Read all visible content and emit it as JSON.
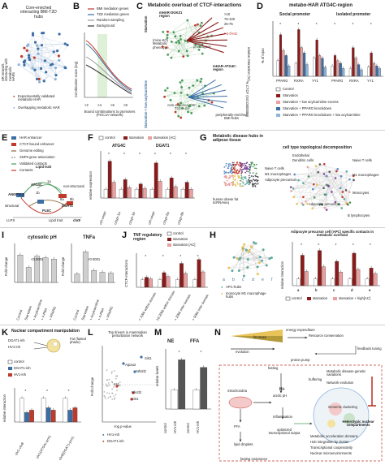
{
  "panels": {
    "A": {
      "letter": "A",
      "title": "Core-enriched interacting BMI-T2D hubs",
      "side_label": "SR network interacting with metabolic HARs",
      "legend": [
        "Experimentally validated metabolic-HAR",
        "Overlapping metabolic HAR"
      ]
    },
    "B": {
      "letter": "B",
      "legend": [
        "BMI mediation genes",
        "T2D mediation genes",
        "Random sampling",
        "Background"
      ],
      "ylabel": "Combination score (log)",
      "xticks": [
        ">2",
        ">4",
        ">6",
        ">8"
      ],
      "xlabel": "Bound combinations to promoters (PGC1A-network)"
    },
    "C": {
      "letter": "C",
      "title": "Metabolic overload of CTCF-interactions",
      "region1": "mHAR-DGKZ1 region",
      "region2": "mHAR-ATG4C-region",
      "starvation": "Starvation",
      "micro": "(mice-KO) Metabolic phenotype",
      "other": "other phenotypes",
      "starv_kd": "Starvation + low acylcarnitine",
      "core": "core-enriched BMI-T2D hubs",
      "peri": "peripherally-enriched BMI-hubs",
      "scale_title": "relative interaction (%)",
      "scale": [
        ">10",
        "75-100",
        "25-75"
      ],
      "ctcf_scale": "% CTCF (GO:0000000)",
      "star": "* 2-tf-KD"
    },
    "D": {
      "letter": "D",
      "title": "metabo-HAR ATG4C-region",
      "social": "Social promoter",
      "isolated": "Isolated promoter",
      "ylabel": "% of input",
      "categories": [
        "PPARG",
        "RXRA",
        "YY1",
        "PPARG",
        "RXRA",
        "YY1"
      ],
      "legend": [
        "Control",
        "Starvation",
        "Starvation + low acylcarnitine excess",
        "Starvation + PPARG knockdown",
        "Starvation + PPARG knockdown + low acylcarnitine"
      ]
    },
    "E": {
      "letter": "E",
      "legend": [
        "HAR enhancer",
        "CTCF-bound enhancer",
        "Genome editing",
        "SNPs-gene association",
        "Validated contacts",
        "Contacts"
      ],
      "labels": {
        "lipid_top": "Lipid trait",
        "angptl3": "ANGPTL3",
        "atg4c": "ATG4C",
        "nonstruct": "non-structural",
        "plec": "PLEC",
        "dgat1": "DGAT1",
        "structural": "structural",
        "llps": "LLPS",
        "lipid_bot": "Lipid trait",
        "chr8": "chr8",
        "n1a": "1a",
        "n1b": "1b",
        "n8a": "8a",
        "n8b": "8b"
      }
    },
    "F": {
      "letter": "F",
      "legend": [
        "control",
        "starvation",
        "starvation [AC]"
      ],
      "ylabel": "relative expression",
      "gene1": "ATG4C",
      "gene2": "DGAT1",
      "xcats1": [
        "ctrl-crispr",
        "crispr-1a",
        "crispr-1b"
      ],
      "xcats2": [
        "ctrl-crispr",
        "crispr-8a",
        "crispr-8b"
      ]
    },
    "G": {
      "letter": "G",
      "title": "Metabolic disease hubs in adipose tissue",
      "subtitle": "cell type topological decomposition",
      "dataset": "human obese fat scRNAseq",
      "cell_labels": [
        "Endothelial",
        "Dendritic cells",
        "Naive T cells",
        "M1 macrophages",
        "Adipocyte precursors",
        "Naive T cells",
        "M1 macrophages",
        "Monocytes",
        "Adipocyte precursors",
        "B lymphocytes"
      ]
    },
    "H": {
      "letter": "H",
      "title": "Adipocyte precursor cell (APC) specific contacts in metabolic overload",
      "ylabel": "relative interaction",
      "xcats": [
        "a",
        "b",
        "c",
        "d",
        "e"
      ],
      "legend": [
        "control",
        "starvation",
        "starvation + high[AC]"
      ],
      "hub_legend": [
        "APC-hubs",
        "monocyte M1 macrophage hubs"
      ],
      "nodes": [
        "a",
        "b",
        "c",
        "d",
        "e",
        "f"
      ]
    },
    "I": {
      "letter": "I",
      "title1": "cytosolic pH",
      "title2": "TNFa",
      "ylabel1": "Fold-change",
      "ylabel2": "Fold-change",
      "pval1": "<0.0001",
      "pval2": "<0.0001",
      "xcats": [
        "Control",
        "Starvation",
        "+ Acylcarnitine",
        "+ 4-PBA",
        "+ PPARG"
      ]
    },
    "J": {
      "letter": "J",
      "title": "TNF regulatory region",
      "ylabel": "CTCF-interactions",
      "legend": [
        "control",
        "starvation",
        "starvation [AC]"
      ],
      "xcats": [
        "< 10kb within domain",
        "10-20kb within domain",
        "> 20kb inter domain",
        "> 50kb inter domain"
      ]
    },
    "K": {
      "letter": "K",
      "title": "Nuclear compartment manipulation",
      "dgat1": "DGAT1-inh",
      "hv1": "HV1-inh",
      "fat": "Fat (fasted phase)",
      "ylabel": "relative interaction",
      "legend": [
        "control",
        "DGAT1-inh",
        "HV1-inh"
      ],
      "xcats": [
        "chr1-chr8",
        "chr1(ATG4c-prm)",
        "chr8(DGAT1-prm)"
      ]
    },
    "L": {
      "letter": "L",
      "title": "Top drivers in mammalian perturbation network",
      "ylabel": "Fold change",
      "xlabel": "-log p-value",
      "genes": [
        "Atp2a2",
        "Sirt1",
        "Nfs2l2",
        "Irs1",
        "Nfe2l2",
        "Sirt1"
      ],
      "legend": [
        "HV1-inh",
        "DGAT1-inh"
      ]
    },
    "M": {
      "letter": "M",
      "title1": "NE",
      "title2": "FFA",
      "ylabel": "relative levels",
      "xcats": [
        "control",
        "HV1-inh",
        "control",
        "HV1-inh"
      ]
    },
    "N": {
      "letter": "N",
      "energy": "energy expenditure",
      "fatmass": "fat mass",
      "evolution": "evolution",
      "resource": "Resource conservation",
      "feedback": "feedback tuning",
      "proton": "proton pump",
      "fasting": "fasting",
      "mito": "mitochondria",
      "acidic": "acidic pH",
      "h": "H+",
      "buffering": "buffering",
      "ffa": "FFA",
      "inflam": "Inflammation",
      "optimized": "optimized transcriptional output",
      "lipid": "lipid droplets",
      "fasting_end": "fasting endurance",
      "genome": "Genomic clustering",
      "bullets": [
        "Metabolic disease genetic variations",
        "Network evolution"
      ],
      "heterotypic": "Heterotypic nuclear compartments",
      "list": [
        "Metabolic acceleration domains",
        "Hub integration by cluster",
        "Transcriptional cooperativity",
        "Nuclear microenvironments"
      ]
    }
  },
  "colors": {
    "dark_red": "#8b1a1a",
    "red": "#c0392b",
    "pink": "#e8a0a0",
    "blue": "#3b6ea5",
    "light_blue": "#8fb4d9",
    "teal": "#5fa8a0",
    "green": "#4a9a5a",
    "purple": "#7a4a9a",
    "gray": "#9a9a9a"
  }
}
